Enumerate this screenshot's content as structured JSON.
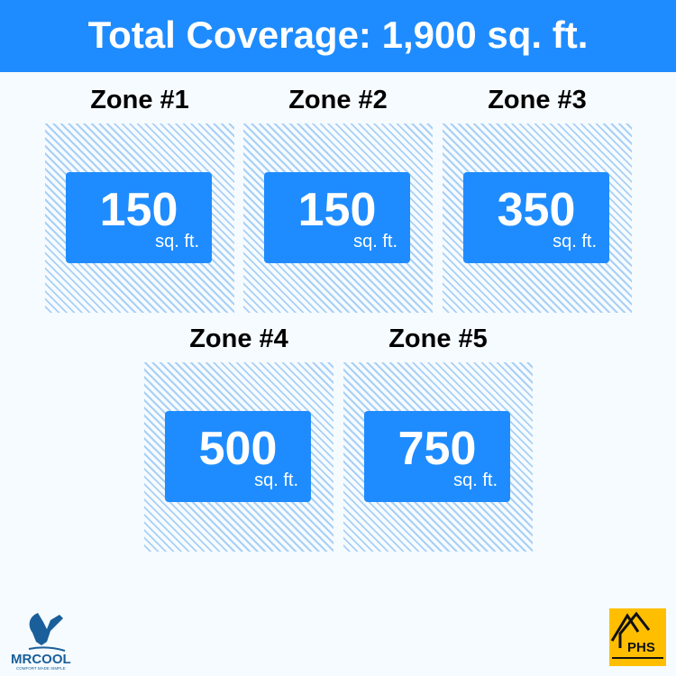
{
  "header": {
    "title": "Total Coverage: 1,900 sq. ft."
  },
  "zones": [
    {
      "title": "Zone #1",
      "value": "150",
      "unit": "sq. ft."
    },
    {
      "title": "Zone #2",
      "value": "150",
      "unit": "sq. ft."
    },
    {
      "title": "Zone #3",
      "value": "350",
      "unit": "sq. ft."
    },
    {
      "title": "Zone #4",
      "value": "500",
      "unit": "sq. ft."
    },
    {
      "title": "Zone #5",
      "value": "750",
      "unit": "sq. ft."
    }
  ],
  "logos": {
    "left": "MRCOOL",
    "left_tagline": "COMFORT MADE SIMPLE",
    "right": "PHS"
  },
  "colors": {
    "accent": "#1e8cff",
    "hatch": "#a9d0f5",
    "phs": "#ffbf00"
  }
}
